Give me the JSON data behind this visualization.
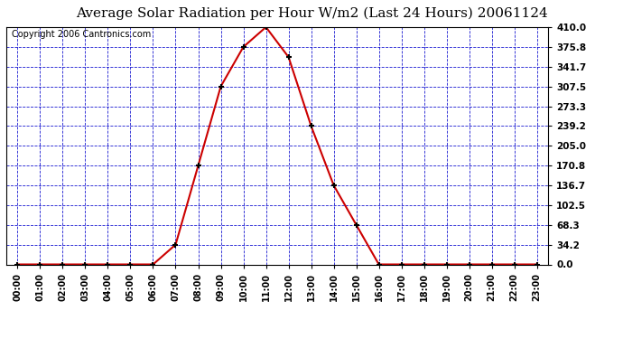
{
  "title": "Average Solar Radiation per Hour W/m2 (Last 24 Hours) 20061124",
  "copyright": "Copyright 2006 Cantronics.com",
  "hours": [
    "00:00",
    "01:00",
    "02:00",
    "03:00",
    "04:00",
    "05:00",
    "06:00",
    "07:00",
    "08:00",
    "09:00",
    "10:00",
    "11:00",
    "12:00",
    "13:00",
    "14:00",
    "15:00",
    "16:00",
    "17:00",
    "18:00",
    "19:00",
    "20:00",
    "21:00",
    "22:00",
    "23:00"
  ],
  "values": [
    0.0,
    0.0,
    0.0,
    0.0,
    0.0,
    0.0,
    0.0,
    34.2,
    170.8,
    307.5,
    375.8,
    410.0,
    358.3,
    239.2,
    136.7,
    68.3,
    0.0,
    0.0,
    0.0,
    0.0,
    0.0,
    0.0,
    0.0,
    0.0
  ],
  "yticks": [
    0.0,
    34.2,
    68.3,
    102.5,
    136.7,
    170.8,
    205.0,
    239.2,
    273.3,
    307.5,
    341.7,
    375.8,
    410.0
  ],
  "ymax": 410.0,
  "ymin": 0.0,
  "line_color": "#cc0000",
  "marker_color": "#000000",
  "bg_color": "#ffffff",
  "plot_bg_color": "#ffffff",
  "grid_color": "#0000cc",
  "title_fontsize": 11,
  "copyright_fontsize": 7
}
